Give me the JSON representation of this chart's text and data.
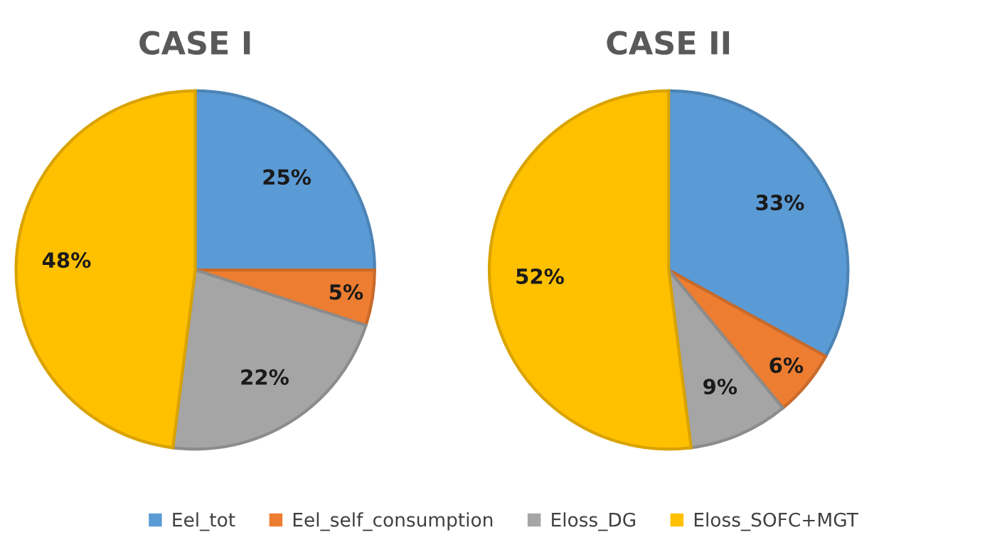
{
  "chart_data": [
    {
      "type": "pie",
      "title": "CASE I",
      "categories": [
        "Eel_tot",
        "Eel_self_consumption",
        "Eloss_DG",
        "Eloss_SOFC+MGT"
      ],
      "values": [
        25,
        5,
        22,
        48
      ],
      "colors": [
        "#5b9bd5",
        "#ed7d31",
        "#a5a5a5",
        "#ffc000"
      ],
      "value_labels": [
        "25%",
        "5%",
        "22%",
        "48%"
      ],
      "legend": "bottom"
    },
    {
      "type": "pie",
      "title": "CASE II",
      "values": [
        33,
        6,
        9,
        52
      ],
      "colors": [
        "#5b9bd5",
        "#ed7d31",
        "#a5a5a5",
        "#ffc000"
      ],
      "value_labels": [
        "33%",
        "6%",
        "9%",
        "52%"
      ]
    }
  ]
}
